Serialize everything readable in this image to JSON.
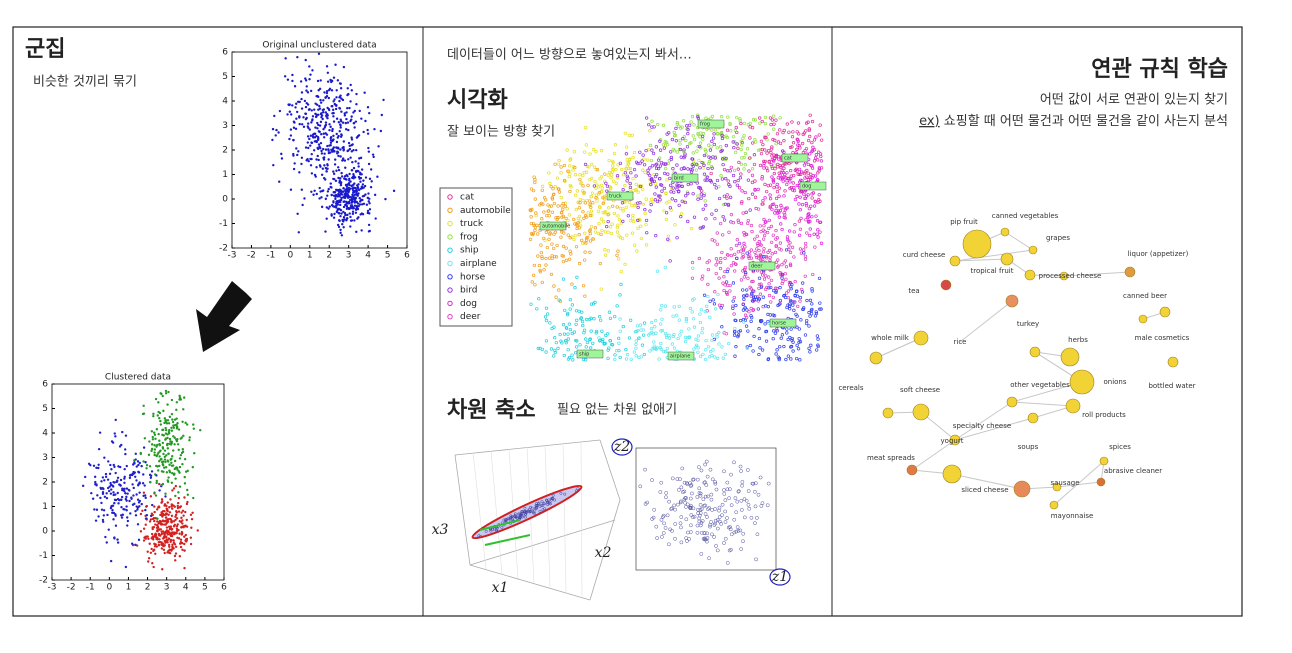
{
  "clustering": {
    "title": "군집",
    "subtitle": "비슷한 것끼리 묶기",
    "original_plot": {
      "title": "Original unclustered data",
      "xticks": [
        -3,
        -2,
        -1,
        0,
        1,
        2,
        3,
        4,
        5,
        6
      ],
      "yticks": [
        -2,
        -1,
        0,
        1,
        2,
        3,
        4,
        5,
        6
      ]
    },
    "clustered_plot": {
      "title": "Clustered data",
      "xticks": [
        -3,
        -2,
        -1,
        0,
        1,
        2,
        3,
        4,
        5,
        6
      ],
      "yticks": [
        -2,
        -1,
        0,
        1,
        2,
        3,
        4,
        5,
        6
      ]
    }
  },
  "visualization": {
    "intro": "데이터들이 어느 방향으로 놓여있는지 봐서…",
    "title": "시각화",
    "subtitle": "잘 보이는 방향 찾기",
    "legend": [
      "cat",
      "automobile",
      "truck",
      "frog",
      "ship",
      "airplane",
      "horse",
      "bird",
      "dog",
      "deer"
    ],
    "map_labels": [
      "truck",
      "automobile",
      "frog",
      "cat",
      "dog",
      "bird",
      "deer",
      "horse",
      "ship",
      "airplane"
    ],
    "reduction_title": "차원 축소",
    "reduction_subtitle": "필요 없는 차원 없애기",
    "axis_labels": [
      "x3",
      "x2",
      "x1",
      "z2",
      "z1"
    ]
  },
  "association": {
    "title": "연관 규칙 학습",
    "line1": "어떤 값이 서로 연관이 있는지 찾기",
    "line2_prefix": "ex)",
    "line2": " 쇼핑할 때 어떤 물건과 어떤 물건을 같이 사는지 분석",
    "nodes": [
      "pip fruit",
      "canned vegetables",
      "grapes",
      "curd cheese",
      "tropical fruit",
      "processed cheese",
      "liquor (appetizer)",
      "tea",
      "canned beer",
      "turkey",
      "male cosmetics",
      "herbs",
      "whole milk",
      "rice",
      "other vegetables",
      "onions",
      "cereals",
      "soft cheese",
      "bottled water",
      "roll products",
      "specialty cheese",
      "soups",
      "yogurt",
      "meat spreads",
      "spices",
      "abrasive cleaner",
      "sausage",
      "sliced cheese",
      "mayonnaise"
    ]
  }
}
